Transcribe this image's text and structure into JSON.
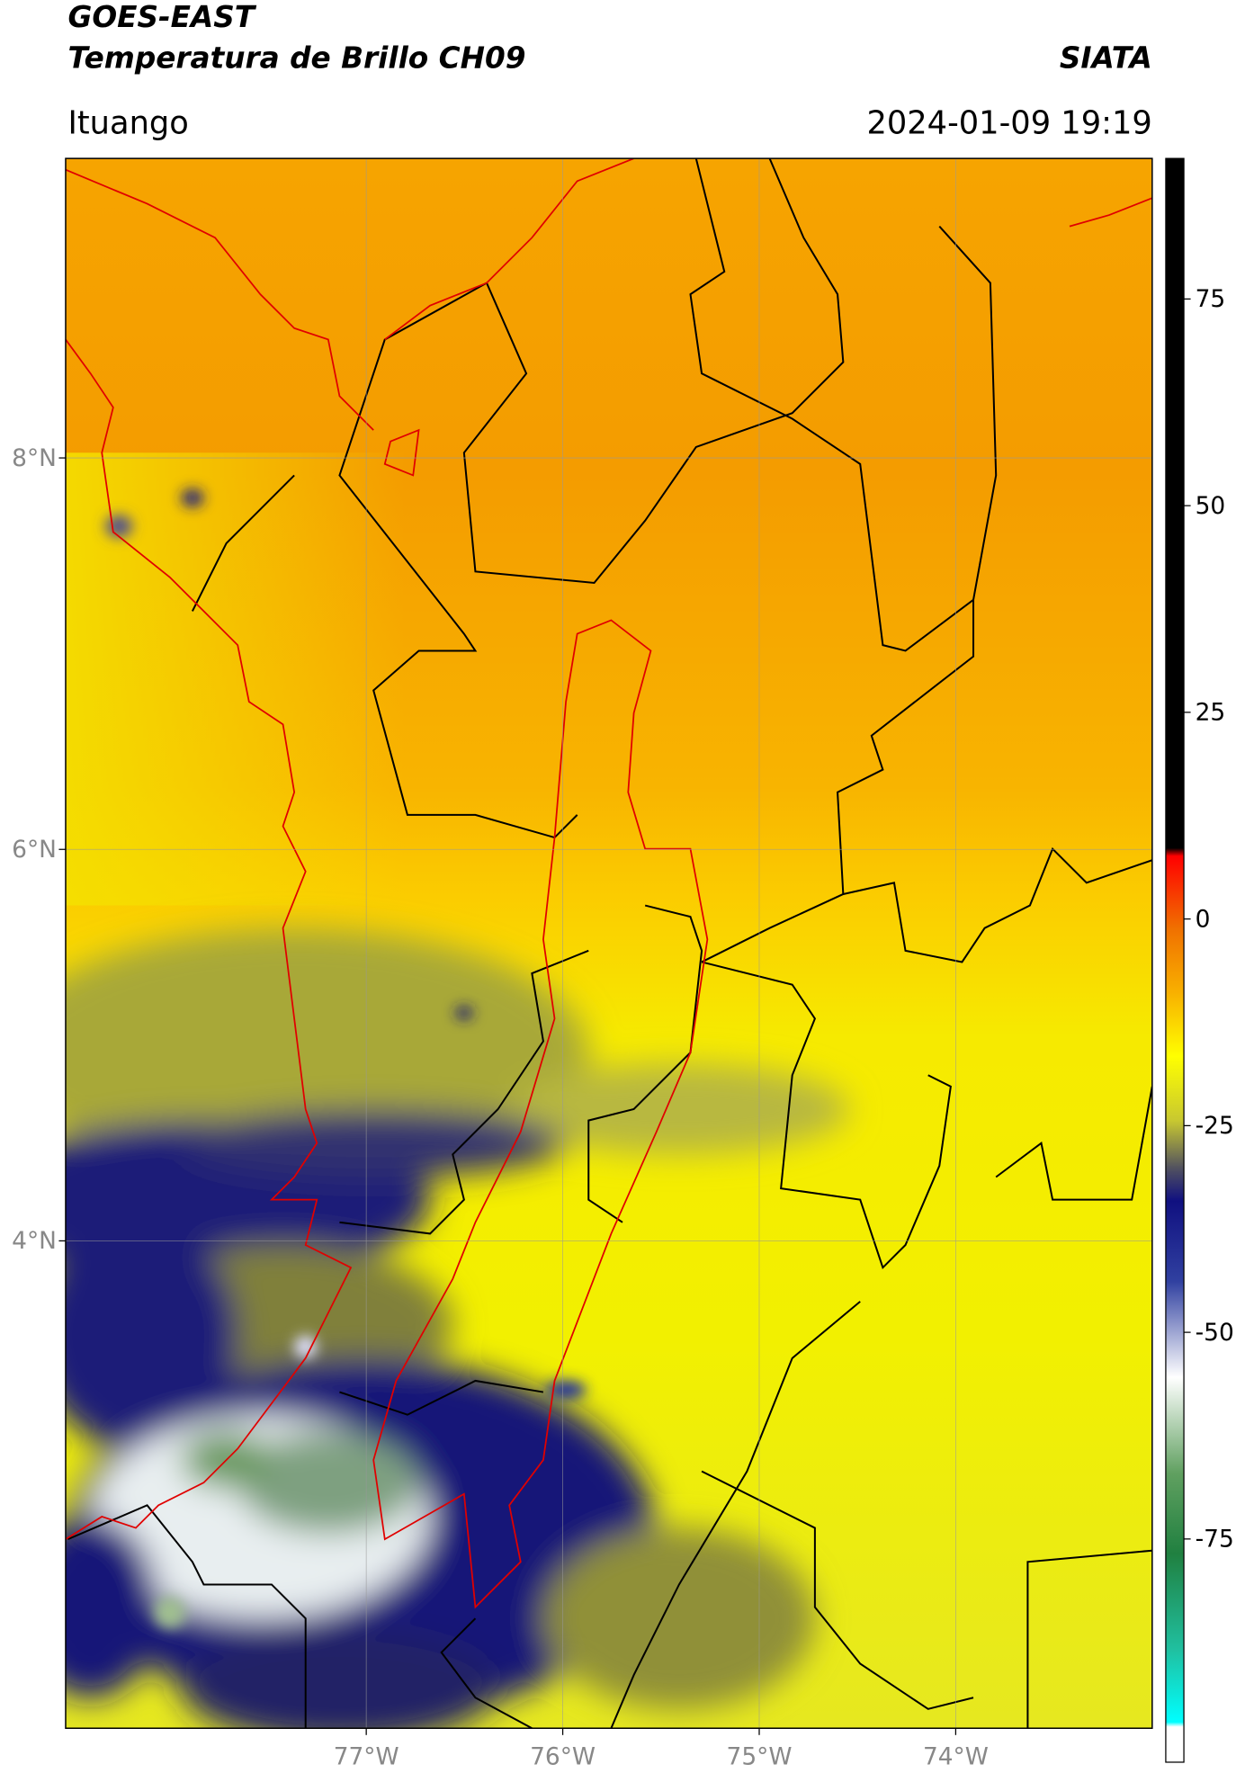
{
  "header": {
    "satellite": "GOES-EAST",
    "product": "Temperatura de Brillo CH09",
    "agency": "SIATA",
    "region": "Ituango",
    "datetime": "2024-01-09 19:19"
  },
  "map": {
    "lat_range": [
      1.51,
      9.53
    ],
    "lon_range": [
      -78.53,
      -73.0
    ],
    "lat_ticks": [
      {
        "value": 8,
        "label": "8°N"
      },
      {
        "value": 6,
        "label": "6°N"
      },
      {
        "value": 4,
        "label": "4°N"
      }
    ],
    "lon_ticks": [
      {
        "value": -77,
        "label": "77°W"
      },
      {
        "value": -76,
        "label": "76°W"
      },
      {
        "value": -75,
        "label": "75°W"
      },
      {
        "value": -74,
        "label": "74°W"
      }
    ]
  },
  "colorbar": {
    "range": [
      -102,
      92
    ],
    "ticks": [
      75,
      50,
      25,
      0,
      -25,
      -50,
      -75
    ]
  }
}
